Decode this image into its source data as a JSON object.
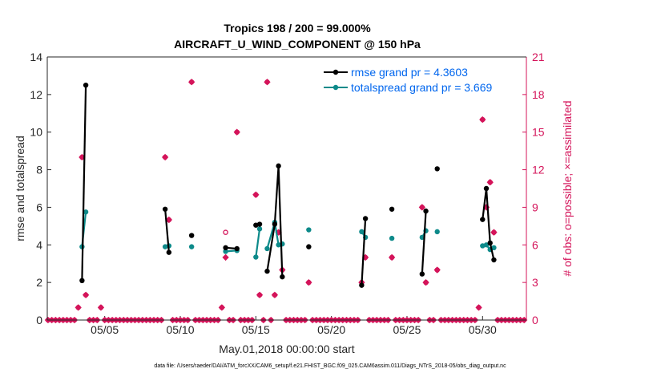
{
  "chart_data": {
    "type": "scatter",
    "title_line1": "Tropics 198 / 200 = 99.000%",
    "title_line2": "AIRCRAFT_U_WIND_COMPONENT @ 150 hPa",
    "ylabel_left": "rmse and totalspread",
    "ylabel_right": "# of obs: o=possible; ×=assimilated",
    "xlabel": "May.01,2018 00:00:00 start",
    "footer": "data file: /Users/raeder/DAI/ATM_forcXX/CAM6_setup/f.e21.FHIST_BGC.f09_025.CAM6assim.011/Diags_NTrS_2018-05/obs_diag_output.nc",
    "xlim": [
      0.7,
      32.4
    ],
    "ylim_left": [
      0,
      14
    ],
    "ylim_right": [
      0,
      21
    ],
    "x_ticks": [
      {
        "value": 4.5,
        "label": "05/05"
      },
      {
        "value": 9.5,
        "label": "05/10"
      },
      {
        "value": 14.5,
        "label": "05/15"
      },
      {
        "value": 19.5,
        "label": "05/20"
      },
      {
        "value": 24.5,
        "label": "05/25"
      },
      {
        "value": 29.5,
        "label": "05/30"
      }
    ],
    "y_ticks_left": [
      {
        "value": 0,
        "label": "0"
      },
      {
        "value": 2,
        "label": "2"
      },
      {
        "value": 4,
        "label": "4"
      },
      {
        "value": 6,
        "label": "6"
      },
      {
        "value": 8,
        "label": "8"
      },
      {
        "value": 10,
        "label": "10"
      },
      {
        "value": 12,
        "label": "12"
      },
      {
        "value": 14,
        "label": "14"
      }
    ],
    "y_ticks_right": [
      {
        "value": 0,
        "label": "0"
      },
      {
        "value": 3,
        "label": "3"
      },
      {
        "value": 6,
        "label": "6"
      },
      {
        "value": 9,
        "label": "9"
      },
      {
        "value": 12,
        "label": "12"
      },
      {
        "value": 15,
        "label": "15"
      },
      {
        "value": 18,
        "label": "18"
      },
      {
        "value": 21,
        "label": "21"
      }
    ],
    "legend": [
      {
        "name": "rmse grand pr = 4.3603",
        "color": "#000000"
      },
      {
        "name": "totalspread grand pr = 3.669",
        "color": "#0d8a8a"
      }
    ],
    "colors": {
      "rmse": "#000000",
      "spread": "#0d8a8a",
      "obs": "#d4145a",
      "legend_text": "#0066ee"
    },
    "series": [
      {
        "name": "rmse",
        "segments": [
          [
            [
              3.0,
              2.1
            ],
            [
              3.25,
              12.5
            ]
          ],
          [
            [
              8.5,
              5.9
            ],
            [
              8.75,
              3.6
            ]
          ],
          [
            [
              10.25,
              4.5
            ]
          ],
          [
            [
              12.5,
              3.85
            ],
            [
              13.25,
              3.8
            ]
          ],
          [
            [
              14.5,
              5.05
            ],
            [
              14.75,
              5.1
            ]
          ],
          [
            [
              15.25,
              2.6
            ],
            [
              15.75,
              5.1
            ],
            [
              16.0,
              8.2
            ],
            [
              16.25,
              2.3
            ]
          ],
          [
            [
              18.0,
              3.9
            ]
          ],
          [
            [
              21.5,
              1.85
            ],
            [
              21.75,
              5.4
            ]
          ],
          [
            [
              23.5,
              5.9
            ]
          ],
          [
            [
              25.5,
              2.45
            ],
            [
              25.75,
              5.8
            ]
          ],
          [
            [
              26.5,
              8.05
            ]
          ],
          [
            [
              29.5,
              5.35
            ],
            [
              29.75,
              7.0
            ],
            [
              30.0,
              4.1
            ],
            [
              30.25,
              3.2
            ]
          ]
        ]
      },
      {
        "name": "totalspread",
        "segments": [
          [
            [
              3.0,
              3.9
            ],
            [
              3.25,
              5.75
            ]
          ],
          [
            [
              8.5,
              3.9
            ],
            [
              8.75,
              3.95
            ]
          ],
          [
            [
              10.25,
              3.9
            ]
          ],
          [
            [
              12.5,
              3.65
            ],
            [
              13.25,
              3.7
            ]
          ],
          [
            [
              14.5,
              3.35
            ],
            [
              14.75,
              4.85
            ]
          ],
          [
            [
              15.25,
              3.8
            ],
            [
              15.75,
              5.2
            ],
            [
              16.0,
              4.0
            ],
            [
              16.25,
              4.05
            ]
          ],
          [
            [
              18.0,
              4.8
            ]
          ],
          [
            [
              21.5,
              4.7
            ],
            [
              21.75,
              4.4
            ]
          ],
          [
            [
              23.5,
              4.35
            ]
          ],
          [
            [
              25.5,
              4.4
            ],
            [
              25.75,
              4.75
            ]
          ],
          [
            [
              26.5,
              4.7
            ]
          ],
          [
            [
              29.5,
              3.95
            ],
            [
              29.75,
              4.0
            ],
            [
              30.0,
              3.75
            ],
            [
              30.25,
              3.85
            ]
          ]
        ]
      }
    ],
    "obs_possible": [
      [
        0.75,
        0
      ],
      [
        1.0,
        0
      ],
      [
        1.25,
        0
      ],
      [
        1.5,
        0
      ],
      [
        1.75,
        0
      ],
      [
        2.0,
        0
      ],
      [
        2.25,
        0
      ],
      [
        2.5,
        0
      ],
      [
        2.75,
        1
      ],
      [
        3.0,
        13
      ],
      [
        3.25,
        2
      ],
      [
        3.5,
        0
      ],
      [
        3.75,
        0
      ],
      [
        4.0,
        0
      ],
      [
        4.25,
        1
      ],
      [
        4.5,
        0
      ],
      [
        4.75,
        0
      ],
      [
        5.0,
        0
      ],
      [
        5.25,
        0
      ],
      [
        5.5,
        0
      ],
      [
        5.75,
        0
      ],
      [
        6.0,
        0
      ],
      [
        6.25,
        0
      ],
      [
        6.5,
        0
      ],
      [
        6.75,
        0
      ],
      [
        7.0,
        0
      ],
      [
        7.25,
        0
      ],
      [
        7.5,
        0
      ],
      [
        7.75,
        0
      ],
      [
        8.0,
        0
      ],
      [
        8.25,
        0
      ],
      [
        8.5,
        13
      ],
      [
        8.75,
        8
      ],
      [
        9.0,
        0
      ],
      [
        9.25,
        0
      ],
      [
        9.5,
        0
      ],
      [
        9.75,
        0
      ],
      [
        10.0,
        0
      ],
      [
        10.25,
        19
      ],
      [
        10.5,
        0
      ],
      [
        10.75,
        0
      ],
      [
        11.0,
        0
      ],
      [
        11.25,
        0
      ],
      [
        11.5,
        0
      ],
      [
        11.75,
        0
      ],
      [
        12.0,
        0
      ],
      [
        12.25,
        1
      ],
      [
        12.5,
        7
      ],
      [
        12.75,
        0
      ],
      [
        13.0,
        0
      ],
      [
        13.25,
        15
      ],
      [
        13.5,
        0
      ],
      [
        13.75,
        0
      ],
      [
        14.0,
        0
      ],
      [
        14.25,
        0
      ],
      [
        14.5,
        10
      ],
      [
        14.75,
        2
      ],
      [
        15.0,
        0
      ],
      [
        15.25,
        19
      ],
      [
        15.5,
        0
      ],
      [
        15.75,
        2
      ],
      [
        16.0,
        7
      ],
      [
        16.25,
        4
      ],
      [
        16.5,
        0
      ],
      [
        16.75,
        0
      ],
      [
        17.0,
        0
      ],
      [
        17.25,
        0
      ],
      [
        17.5,
        0
      ],
      [
        17.75,
        0
      ],
      [
        18.0,
        3
      ],
      [
        18.25,
        0
      ],
      [
        18.5,
        0
      ],
      [
        18.75,
        0
      ],
      [
        19.0,
        0
      ],
      [
        19.25,
        0
      ],
      [
        19.5,
        0
      ],
      [
        19.75,
        0
      ],
      [
        20.0,
        0
      ],
      [
        20.25,
        0
      ],
      [
        20.5,
        0
      ],
      [
        20.75,
        0
      ],
      [
        21.0,
        0
      ],
      [
        21.25,
        0
      ],
      [
        21.5,
        3
      ],
      [
        21.75,
        5
      ],
      [
        22.0,
        0
      ],
      [
        22.25,
        0
      ],
      [
        22.5,
        0
      ],
      [
        22.75,
        0
      ],
      [
        23.0,
        0
      ],
      [
        23.25,
        0
      ],
      [
        23.5,
        5
      ],
      [
        23.75,
        0
      ],
      [
        24.0,
        0
      ],
      [
        24.25,
        0
      ],
      [
        24.5,
        0
      ],
      [
        24.75,
        0
      ],
      [
        25.0,
        0
      ],
      [
        25.25,
        0
      ],
      [
        25.5,
        9
      ],
      [
        25.75,
        3
      ],
      [
        26.0,
        0
      ],
      [
        26.25,
        0
      ],
      [
        26.5,
        4
      ],
      [
        26.75,
        0
      ],
      [
        27.0,
        0
      ],
      [
        27.25,
        0
      ],
      [
        27.5,
        0
      ],
      [
        27.75,
        0
      ],
      [
        28.0,
        0
      ],
      [
        28.25,
        0
      ],
      [
        28.5,
        0
      ],
      [
        28.75,
        0
      ],
      [
        29.0,
        0
      ],
      [
        29.25,
        1
      ],
      [
        29.5,
        16
      ],
      [
        29.75,
        9
      ],
      [
        30.0,
        11
      ],
      [
        30.25,
        7
      ],
      [
        30.5,
        0
      ],
      [
        30.75,
        0
      ],
      [
        31.0,
        0
      ],
      [
        31.25,
        0
      ],
      [
        31.5,
        0
      ],
      [
        31.75,
        0
      ],
      [
        32.0,
        0
      ],
      [
        32.25,
        0
      ]
    ],
    "obs_assimilated": [
      [
        0.75,
        0
      ],
      [
        1.0,
        0
      ],
      [
        1.25,
        0
      ],
      [
        1.5,
        0
      ],
      [
        1.75,
        0
      ],
      [
        2.0,
        0
      ],
      [
        2.25,
        0
      ],
      [
        2.5,
        0
      ],
      [
        2.75,
        1
      ],
      [
        3.0,
        13
      ],
      [
        3.25,
        2
      ],
      [
        3.5,
        0
      ],
      [
        3.75,
        0
      ],
      [
        4.0,
        0
      ],
      [
        4.25,
        1
      ],
      [
        4.5,
        0
      ],
      [
        4.75,
        0
      ],
      [
        5.0,
        0
      ],
      [
        5.25,
        0
      ],
      [
        5.5,
        0
      ],
      [
        5.75,
        0
      ],
      [
        6.0,
        0
      ],
      [
        6.25,
        0
      ],
      [
        6.5,
        0
      ],
      [
        6.75,
        0
      ],
      [
        7.0,
        0
      ],
      [
        7.25,
        0
      ],
      [
        7.5,
        0
      ],
      [
        7.75,
        0
      ],
      [
        8.0,
        0
      ],
      [
        8.25,
        0
      ],
      [
        8.5,
        13
      ],
      [
        8.75,
        8
      ],
      [
        9.0,
        0
      ],
      [
        9.25,
        0
      ],
      [
        9.5,
        0
      ],
      [
        9.75,
        0
      ],
      [
        10.0,
        0
      ],
      [
        10.25,
        19
      ],
      [
        10.5,
        0
      ],
      [
        10.75,
        0
      ],
      [
        11.0,
        0
      ],
      [
        11.25,
        0
      ],
      [
        11.5,
        0
      ],
      [
        11.75,
        0
      ],
      [
        12.0,
        0
      ],
      [
        12.25,
        1
      ],
      [
        12.5,
        5
      ],
      [
        12.75,
        0
      ],
      [
        13.0,
        0
      ],
      [
        13.25,
        15
      ],
      [
        13.5,
        0
      ],
      [
        13.75,
        0
      ],
      [
        14.0,
        0
      ],
      [
        14.25,
        0
      ],
      [
        14.5,
        10
      ],
      [
        14.75,
        2
      ],
      [
        15.0,
        0
      ],
      [
        15.25,
        19
      ],
      [
        15.5,
        0
      ],
      [
        15.75,
        2
      ],
      [
        16.0,
        7
      ],
      [
        16.25,
        4
      ],
      [
        16.5,
        0
      ],
      [
        16.75,
        0
      ],
      [
        17.0,
        0
      ],
      [
        17.25,
        0
      ],
      [
        17.5,
        0
      ],
      [
        17.75,
        0
      ],
      [
        18.0,
        3
      ],
      [
        18.25,
        0
      ],
      [
        18.5,
        0
      ],
      [
        18.75,
        0
      ],
      [
        19.0,
        0
      ],
      [
        19.25,
        0
      ],
      [
        19.5,
        0
      ],
      [
        19.75,
        0
      ],
      [
        20.0,
        0
      ],
      [
        20.25,
        0
      ],
      [
        20.5,
        0
      ],
      [
        20.75,
        0
      ],
      [
        21.0,
        0
      ],
      [
        21.25,
        0
      ],
      [
        21.5,
        3
      ],
      [
        21.75,
        5
      ],
      [
        22.0,
        0
      ],
      [
        22.25,
        0
      ],
      [
        22.5,
        0
      ],
      [
        22.75,
        0
      ],
      [
        23.0,
        0
      ],
      [
        23.25,
        0
      ],
      [
        23.5,
        5
      ],
      [
        23.75,
        0
      ],
      [
        24.0,
        0
      ],
      [
        24.25,
        0
      ],
      [
        24.5,
        0
      ],
      [
        24.75,
        0
      ],
      [
        25.0,
        0
      ],
      [
        25.25,
        0
      ],
      [
        25.5,
        9
      ],
      [
        25.75,
        3
      ],
      [
        26.0,
        0
      ],
      [
        26.25,
        0
      ],
      [
        26.5,
        4
      ],
      [
        26.75,
        0
      ],
      [
        27.0,
        0
      ],
      [
        27.25,
        0
      ],
      [
        27.5,
        0
      ],
      [
        27.75,
        0
      ],
      [
        28.0,
        0
      ],
      [
        28.25,
        0
      ],
      [
        28.5,
        0
      ],
      [
        28.75,
        0
      ],
      [
        29.0,
        0
      ],
      [
        29.25,
        1
      ],
      [
        29.5,
        16
      ],
      [
        29.75,
        9
      ],
      [
        30.0,
        11
      ],
      [
        30.25,
        7
      ],
      [
        30.5,
        0
      ],
      [
        30.75,
        0
      ],
      [
        31.0,
        0
      ],
      [
        31.25,
        0
      ],
      [
        31.5,
        0
      ],
      [
        31.75,
        0
      ],
      [
        32.0,
        0
      ],
      [
        32.25,
        0
      ]
    ]
  }
}
